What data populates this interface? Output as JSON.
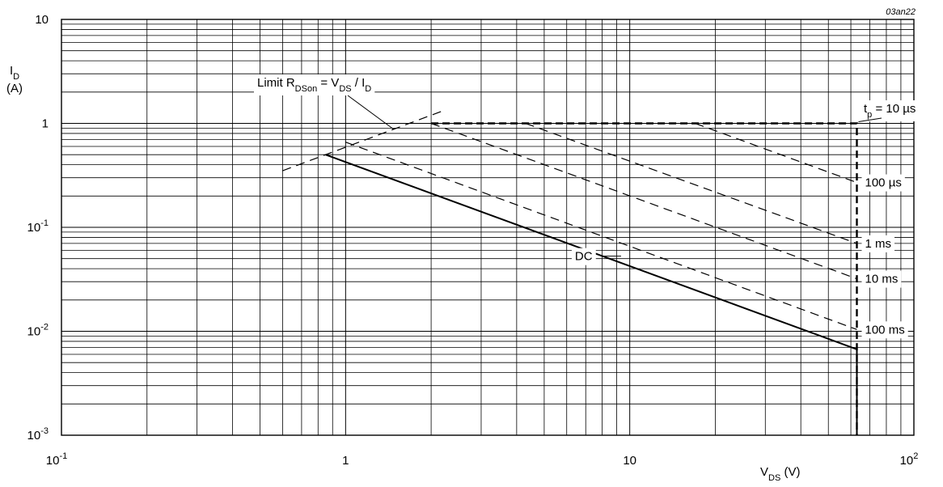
{
  "chart_data": {
    "type": "line",
    "figure_code": "03an22",
    "x_axis": {
      "scale": "log",
      "range": [
        0.1,
        100
      ],
      "tick_labels": [
        {
          "value": 0.1,
          "base": "10",
          "exp": "-1"
        },
        {
          "value": 1,
          "base": "1",
          "exp": ""
        },
        {
          "value": 10,
          "base": "10",
          "exp": ""
        },
        {
          "value": 100,
          "base": "10",
          "exp": "2"
        }
      ],
      "label": {
        "main": "V",
        "sub": "DS",
        "unit": " (V)"
      }
    },
    "y_axis": {
      "scale": "log",
      "range": [
        0.001,
        10
      ],
      "tick_labels": [
        {
          "value": 10,
          "base": "10",
          "exp": ""
        },
        {
          "value": 1,
          "base": "1",
          "exp": ""
        },
        {
          "value": 0.1,
          "base": "10",
          "exp": "-1"
        },
        {
          "value": 0.01,
          "base": "10",
          "exp": "-2"
        },
        {
          "value": 0.001,
          "base": "10",
          "exp": "-3"
        }
      ],
      "label": {
        "main": "I",
        "sub": "D",
        "unit": "(A)"
      }
    },
    "grid": true,
    "limit_label": {
      "prefix": "Limit R",
      "sub1": "DSon",
      "mid": " = V",
      "sub2": "DS",
      "mid2": " / I",
      "sub3": "D"
    },
    "tp_label": {
      "prefix": "t",
      "sub": "p",
      "suffix": " = 10 µs"
    },
    "series": [
      {
        "name": "limit",
        "style": "dashed",
        "points": [
          [
            0.6,
            0.35
          ],
          [
            2.2,
            1.32
          ]
        ]
      },
      {
        "name": "DC",
        "style": "solid",
        "points": [
          [
            0.85,
            0.5
          ],
          [
            63,
            0.0067
          ],
          [
            63,
            0.001
          ]
        ]
      },
      {
        "name": "t_p = 10 µs",
        "style": "dashed-heavy",
        "points": [
          [
            2.0,
            1.0
          ],
          [
            63,
            1.0
          ],
          [
            63,
            0.001
          ]
        ]
      },
      {
        "name": "100 µs",
        "style": "dashed",
        "points": [
          [
            17,
            1.0
          ],
          [
            63,
            0.27
          ]
        ]
      },
      {
        "name": "1 ms",
        "style": "dashed",
        "points": [
          [
            4.3,
            1.0
          ],
          [
            63,
            0.07
          ]
        ]
      },
      {
        "name": "10 ms",
        "style": "dashed",
        "points": [
          [
            2.0,
            1.0
          ],
          [
            63,
            0.032
          ]
        ]
      },
      {
        "name": "100 ms",
        "style": "dashed",
        "points": [
          [
            1.0,
            0.66
          ],
          [
            63,
            0.0104
          ]
        ]
      }
    ],
    "annotations": [
      {
        "text": "100 µs",
        "x": 63,
        "y": 0.27
      },
      {
        "text": "1 ms",
        "x": 63,
        "y": 0.07
      },
      {
        "text": "10 ms",
        "x": 63,
        "y": 0.032
      },
      {
        "text": "100 ms",
        "x": 63,
        "y": 0.0104
      },
      {
        "text": "DC",
        "x": 6.5,
        "y": 0.05
      }
    ]
  }
}
